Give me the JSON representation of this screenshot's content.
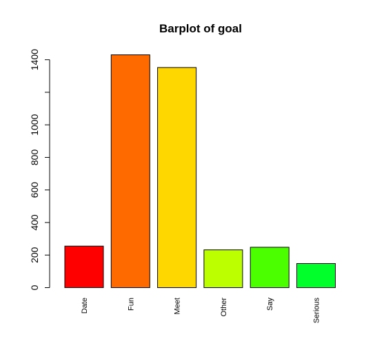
{
  "chart_data": {
    "type": "bar",
    "title": "Barplot of goal",
    "categories": [
      "Date",
      "Fun",
      "Meet",
      "Other",
      "Say",
      "Serious"
    ],
    "values": [
      255,
      1430,
      1352,
      232,
      248,
      148
    ],
    "colors": [
      "#FF0000",
      "#FF6A00",
      "#FFD700",
      "#BBFF00",
      "#4CFF00",
      "#00FF2B"
    ],
    "y_ticks": [
      0,
      200,
      400,
      600,
      800,
      1000,
      1400
    ],
    "y_axis_extent": [
      0,
      1400
    ],
    "ylim": [
      0,
      1430
    ],
    "xlabel": "",
    "ylabel": "",
    "grid": false,
    "legend": "none"
  }
}
